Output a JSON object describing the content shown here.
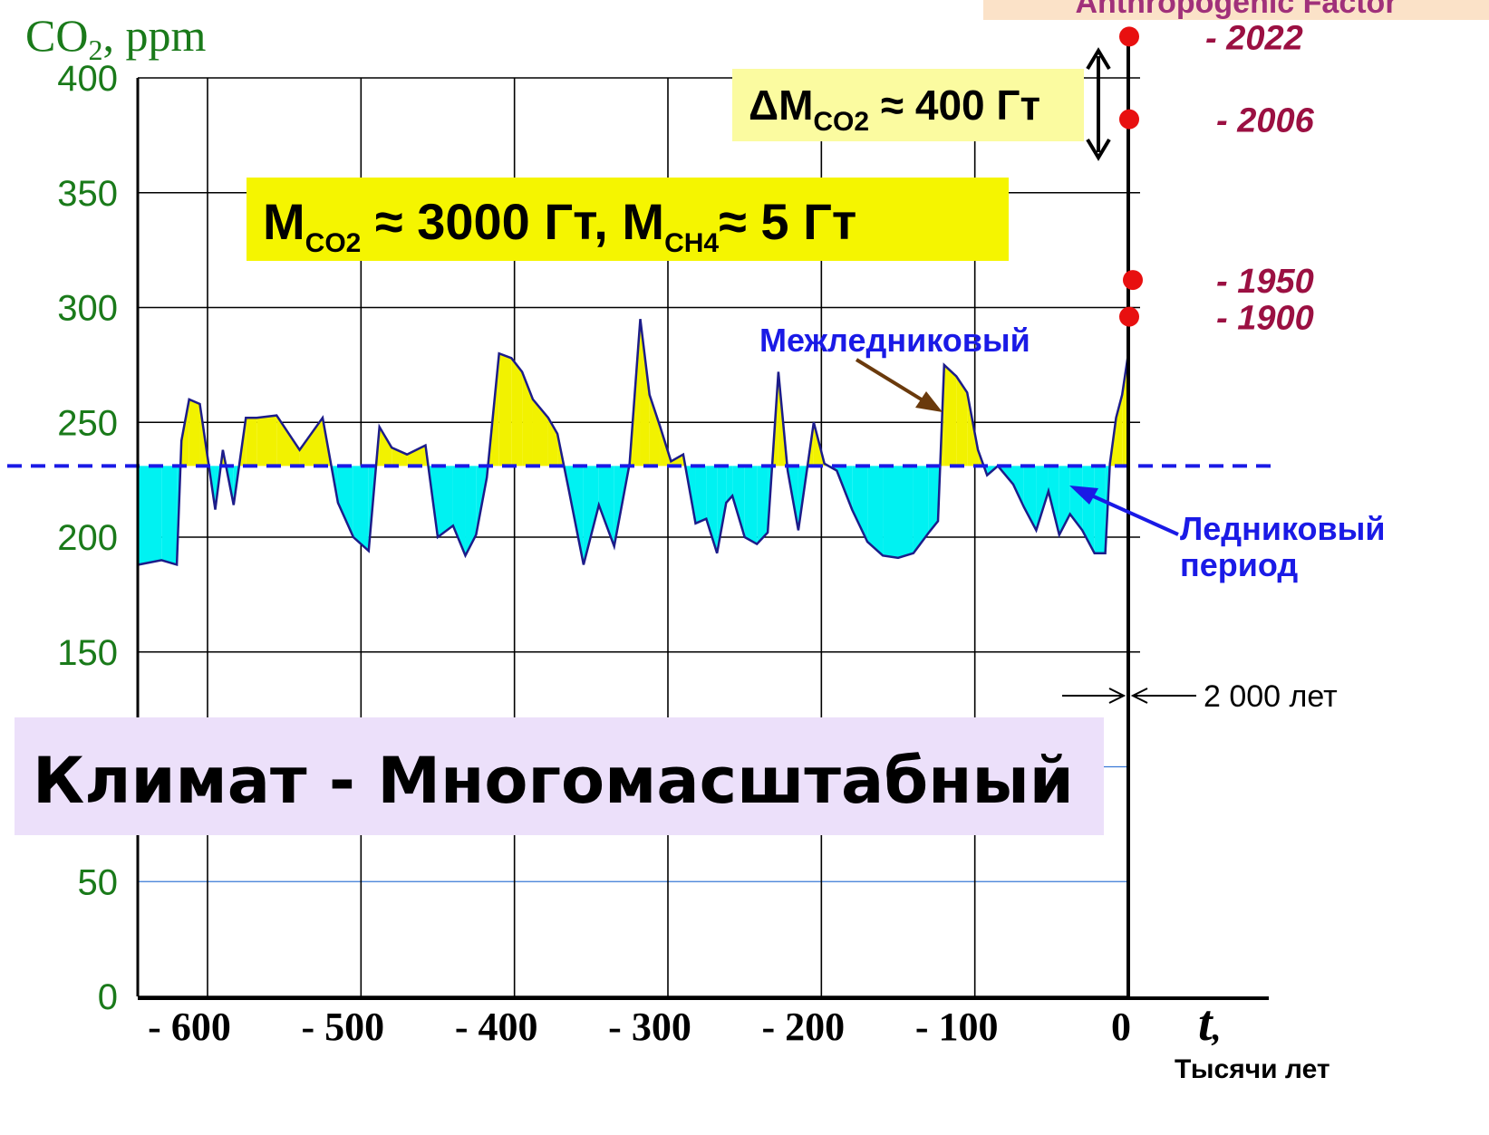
{
  "chart_data": {
    "type": "area",
    "ylabel": "CO",
    "ylabel_sub": "2",
    "ylabel_unit": ", ppm",
    "ylim": [
      0,
      400
    ],
    "yticks": [
      "0",
      "50",
      "150",
      "200",
      "250",
      "300",
      "350",
      "400"
    ],
    "yticks_values": [
      0,
      50,
      150,
      200,
      250,
      300,
      350,
      400
    ],
    "xlim": [
      -645,
      95
    ],
    "xticks": [
      "- 600",
      "- 500",
      "- 400",
      "- 300",
      "- 200",
      "- 100",
      "0"
    ],
    "xticks_values": [
      -600,
      -500,
      -400,
      -300,
      -200,
      -100,
      0
    ],
    "xlabel": "t",
    "xlabel_suffix": ",",
    "xunits": "Тысячи лет",
    "baseline": 231,
    "baseline_color": "#1a1ae6",
    "above_color": "#f2f200",
    "below_color": "#00f2f2",
    "series": [
      {
        "x": [
          -645,
          -630,
          -620,
          -617,
          -612,
          -605,
          -595,
          -590,
          -583,
          -575,
          -568,
          -555,
          -540,
          -525,
          -515,
          -505,
          -495,
          -488,
          -480,
          -470,
          -458,
          -450,
          -440,
          -432,
          -425,
          -418,
          -410,
          -402,
          -395,
          -388,
          -378,
          -372,
          -365,
          -355,
          -345,
          -335,
          -325,
          -318,
          -312,
          -305,
          -298,
          -290,
          -282,
          -275,
          -268,
          -262,
          -258,
          -250,
          -242,
          -235,
          -228,
          -222,
          -215,
          -205,
          -198,
          -190,
          -180,
          -170,
          -160,
          -150,
          -140,
          -130,
          -124,
          -120,
          -112,
          -105,
          -98,
          -92,
          -85,
          -75,
          -68,
          -60,
          -52,
          -45,
          -38,
          -30,
          -22,
          -15,
          -12,
          -8,
          -4,
          0
        ],
        "values": [
          188,
          190,
          188,
          242,
          260,
          258,
          212,
          238,
          214,
          252,
          252,
          253,
          238,
          252,
          215,
          200,
          194,
          248,
          239,
          236,
          240,
          200,
          205,
          192,
          201,
          226,
          280,
          278,
          272,
          260,
          252,
          245,
          222,
          188,
          214,
          196,
          232,
          295,
          262,
          248,
          233,
          236,
          206,
          208,
          193,
          215,
          218,
          200,
          197,
          202,
          272,
          229,
          203,
          250,
          232,
          229,
          212,
          198,
          192,
          191,
          193,
          202,
          207,
          275,
          270,
          263,
          238,
          227,
          231,
          223,
          213,
          203,
          220,
          201,
          210,
          203,
          193,
          193,
          232,
          252,
          262,
          280
        ]
      }
    ]
  },
  "annotations": {
    "mass_main_1": "M",
    "mass_main_1_sub": "CO2",
    "mass_main_2": " ≈ 3000 Гт,  M",
    "mass_main_2_sub": "CH4",
    "mass_main_3": "≈ 5 Гт",
    "delta_1": "ΔM",
    "delta_sub": "CO2",
    "delta_2": " ≈ 400 Гт",
    "interglacial": "Межледниковый",
    "glacial_line1": "Ледниковый",
    "glacial_line2": "период",
    "two_thousand": "2 000 лет",
    "title": "Климат - Многомасштабный",
    "anthropogenic_partial": "Anthropogenic Factor"
  },
  "years": [
    {
      "label": "- 2022",
      "ppm": 418
    },
    {
      "label": "- 2006",
      "ppm": 382
    },
    {
      "label": "- 1950",
      "ppm": 312
    },
    {
      "label": "- 1900",
      "ppm": 296
    }
  ],
  "colors": {
    "tick_green": "#1a7a1a",
    "year_red": "#9b1042",
    "point_red": "#e81010",
    "title_box": "#ece0fa",
    "mass_box": "#f5f500",
    "delta_box": "#fbfba0"
  }
}
